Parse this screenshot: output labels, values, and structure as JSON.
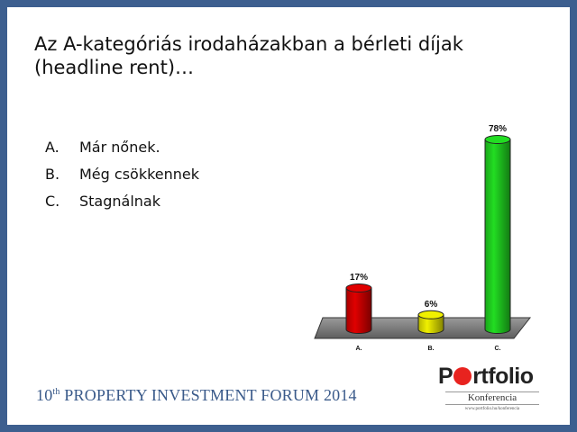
{
  "slide": {
    "title": "Az A-kategóriás irodaházakban a bérleti díjak (headline rent)…",
    "options": [
      {
        "letter": "A.",
        "text": "Már nőnek."
      },
      {
        "letter": "B.",
        "text": "Még csökkennek"
      },
      {
        "letter": "C.",
        "text": "Stagnálnak"
      }
    ]
  },
  "footer": {
    "number": "10",
    "suffix": "th",
    "text": " PROPERTY INVESTMENT FORUM 2014"
  },
  "logo": {
    "brand_pre": "P",
    "brand_post": "rtfolio",
    "subtitle": "Konferencia",
    "url": "www.portfolio.hu/konferencia",
    "accent": "#e8231f"
  },
  "chart_data": {
    "type": "bar",
    "categories": [
      "A.",
      "B.",
      "C."
    ],
    "values": [
      17,
      6,
      78
    ],
    "value_labels": [
      "17%",
      "6%",
      "78%"
    ],
    "colors": [
      "#e00000",
      "#f0f000",
      "#22dd22"
    ],
    "ylim": [
      0,
      78
    ],
    "grid": false,
    "legend": "none"
  }
}
